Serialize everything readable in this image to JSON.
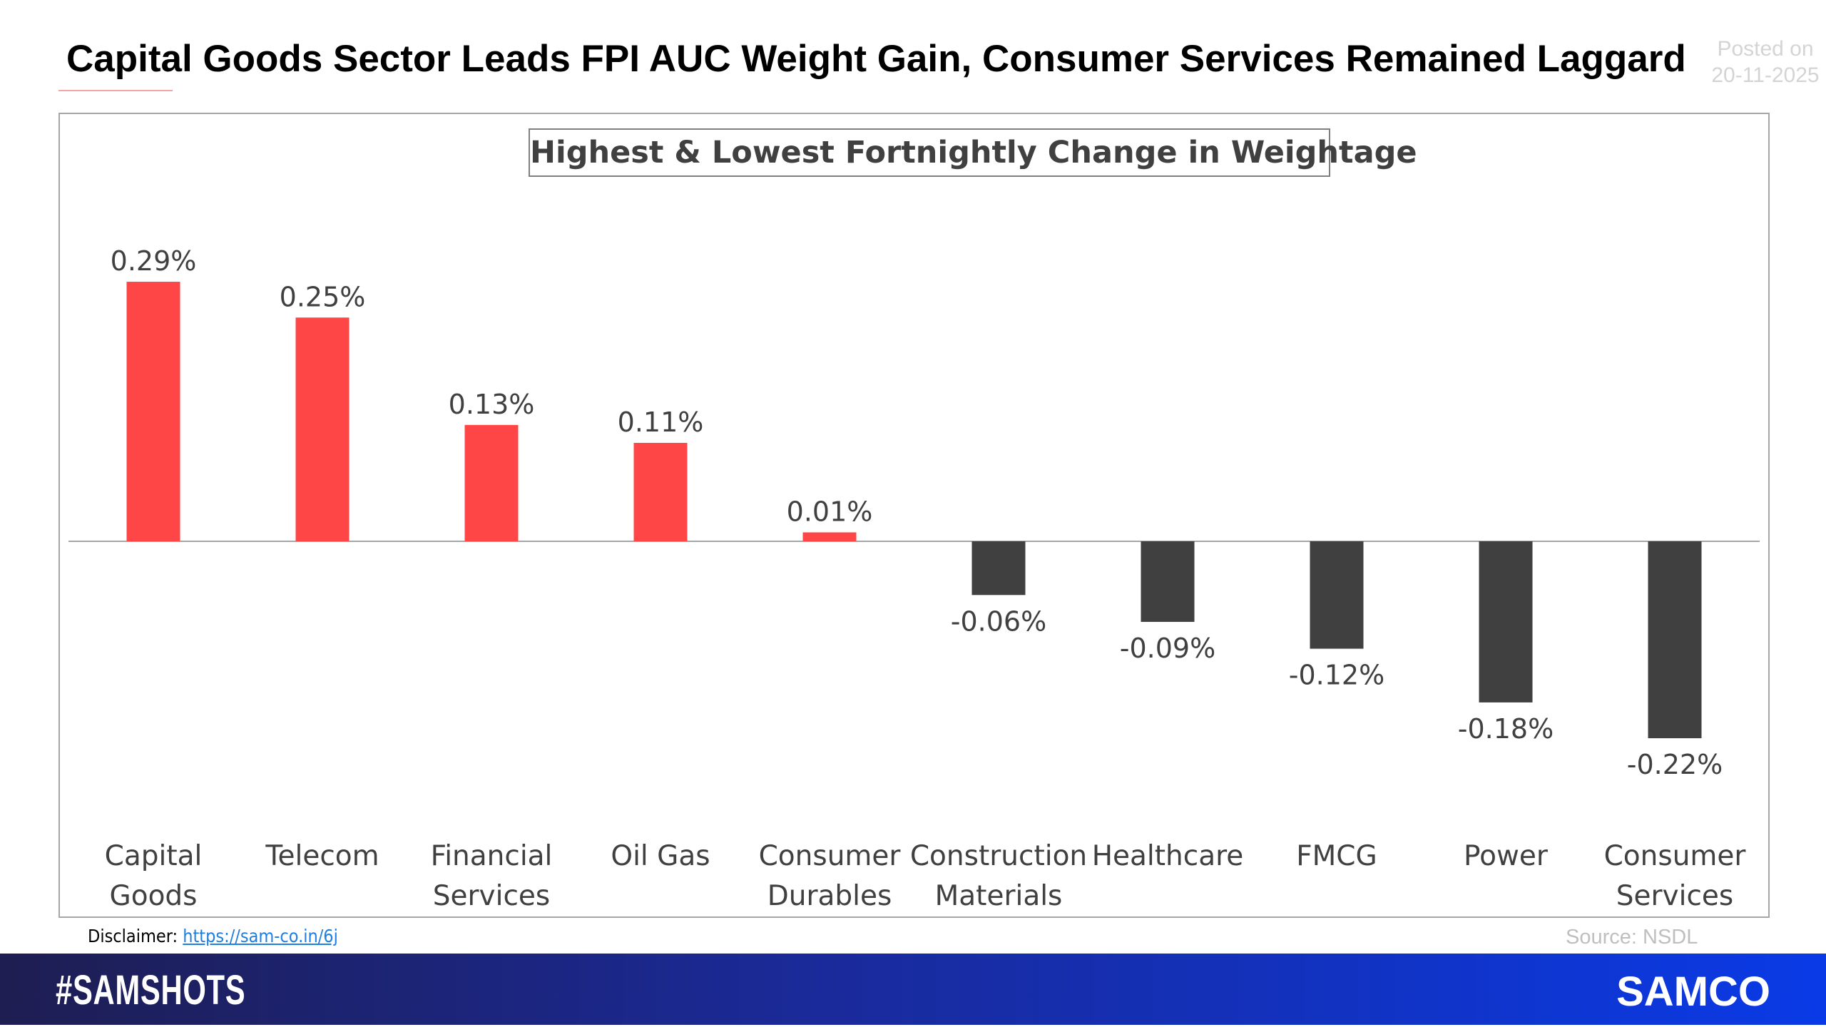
{
  "header": {
    "title": "Capital Goods Sector Leads FPI AUC Weight Gain, Consumer Services Remained Laggard",
    "posted_label": "Posted on",
    "posted_date": "20-11-2025"
  },
  "chart_data": {
    "type": "bar",
    "title": "Highest & Lowest Fortnightly Change in Weightage",
    "categories": [
      [
        "Capital",
        "Goods"
      ],
      [
        "Telecom"
      ],
      [
        "Financial",
        "Services"
      ],
      [
        "Oil Gas"
      ],
      [
        "Consumer",
        "Durables"
      ],
      [
        "Construction",
        "Materials"
      ],
      [
        "Healthcare"
      ],
      [
        "FMCG"
      ],
      [
        "Power"
      ],
      [
        "Consumer",
        "Services"
      ]
    ],
    "values": [
      0.29,
      0.25,
      0.13,
      0.11,
      0.01,
      -0.06,
      -0.09,
      -0.12,
      -0.18,
      -0.22
    ],
    "data_labels": [
      "0.29%",
      "0.25%",
      "0.13%",
      "0.11%",
      "0.01%",
      "-0.06%",
      "-0.09%",
      "-0.12%",
      "-0.18%",
      "-0.22%"
    ],
    "unit": "%",
    "positive_color": "#ff4646",
    "negative_color": "#404040",
    "grid": false,
    "legend": "none"
  },
  "footer": {
    "disclaimer_label": "Disclaimer:",
    "disclaimer_link": "https://sam-co.in/6j",
    "source": "Source: NSDL",
    "hashtag": "#SAMSHOTS",
    "brand": "SAMCO"
  }
}
